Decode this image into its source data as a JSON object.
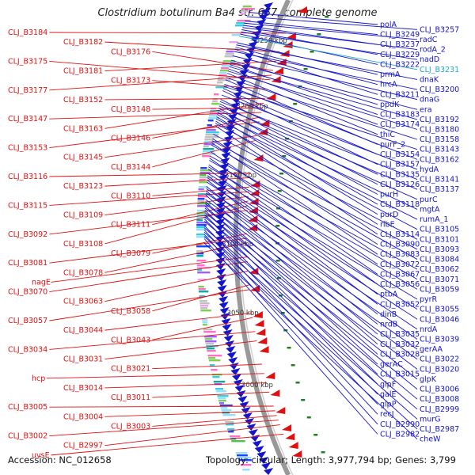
{
  "header": {
    "title": "Clostridium botulinum Ba4 str. 657, complete genome"
  },
  "footer": {
    "accession": "Accession: NC_012658",
    "topology": "Topology: circular; Length: 3,977,794 bp; Genes: 3,799"
  },
  "colors": {
    "forward": "#e01010",
    "reverse": "#1414c8",
    "highlight": "#20a8c8",
    "backbone": "#999999"
  },
  "ruler": [
    "3250 kbp",
    "3200 kbp",
    "3150 kbp",
    "3100 kbp",
    "3050 kbp",
    "3000 kbp"
  ],
  "forward_labels": [
    {
      "text": "CLJ_B3184",
      "gene": 0.04
    },
    {
      "text": "CLJ_B3182",
      "gene": 0.08
    },
    {
      "text": "CLJ_B3176",
      "gene": 0.12
    },
    {
      "text": "CLJ_B3175",
      "gene": 0.14
    },
    {
      "text": "CLJ_B3181",
      "gene": 0.1
    },
    {
      "text": "CLJ_B3173",
      "gene": 0.16
    },
    {
      "text": "CLJ_B3177",
      "gene": 0.13
    },
    {
      "text": "CLJ_B3152",
      "gene": 0.18
    },
    {
      "text": "CLJ_B3148",
      "gene": 0.2
    },
    {
      "text": "CLJ_B3147",
      "gene": 0.21
    },
    {
      "text": "CLJ_B3163",
      "gene": 0.19
    },
    {
      "text": "CLJ_B3146",
      "gene": 0.22
    },
    {
      "text": "CLJ_B3153",
      "gene": 0.23
    },
    {
      "text": "CLJ_B3145",
      "gene": 0.26
    },
    {
      "text": "CLJ_B3144",
      "gene": 0.27
    },
    {
      "text": "CLJ_B3116",
      "gene": 0.34
    },
    {
      "text": "CLJ_B3123",
      "gene": 0.35
    },
    {
      "text": "CLJ_B3110",
      "gene": 0.37
    },
    {
      "text": "CLJ_B3115",
      "gene": 0.38
    },
    {
      "text": "CLJ_B3109",
      "gene": 0.39
    },
    {
      "text": "CLJ_B3111",
      "gene": 0.4
    },
    {
      "text": "CLJ_B3092",
      "gene": 0.42
    },
    {
      "text": "CLJ_B3108",
      "gene": 0.41
    },
    {
      "text": "CLJ_B3079",
      "gene": 0.47
    },
    {
      "text": "CLJ_B3081",
      "gene": 0.48
    },
    {
      "text": "CLJ_B3078",
      "gene": 0.49
    },
    {
      "text": "nagE",
      "gene": 0.52
    },
    {
      "text": "CLJ_B3070",
      "gene": 0.53
    },
    {
      "text": "CLJ_B3063",
      "gene": 0.55
    },
    {
      "text": "CLJ_B3058",
      "gene": 0.58
    },
    {
      "text": "CLJ_B3057",
      "gene": 0.59
    },
    {
      "text": "CLJ_B3044",
      "gene": 0.64
    },
    {
      "text": "CLJ_B3043",
      "gene": 0.65
    },
    {
      "text": "CLJ_B3034",
      "gene": 0.68
    },
    {
      "text": "CLJ_B3031",
      "gene": 0.7
    },
    {
      "text": "CLJ_B3021",
      "gene": 0.75
    },
    {
      "text": "hcp",
      "gene": 0.77
    },
    {
      "text": "CLJ_B3014",
      "gene": 0.79
    },
    {
      "text": "CLJ_B3011",
      "gene": 0.81
    },
    {
      "text": "CLJ_B3005",
      "gene": 0.84
    },
    {
      "text": "CLJ_B3004",
      "gene": 0.85
    },
    {
      "text": "CLJ_B3003",
      "gene": 0.86
    },
    {
      "text": "CLJ_B3002",
      "gene": 0.87
    },
    {
      "text": "CLJ_B2997",
      "gene": 0.88
    },
    {
      "text": "uvsE",
      "gene": 0.9
    }
  ],
  "reverse_labels": [
    {
      "text": "polA",
      "gene": 0.01
    },
    {
      "text": "CLJ_B3257",
      "gene": 0.02
    },
    {
      "text": "CLJ_B3249",
      "gene": 0.03
    },
    {
      "text": "radC",
      "gene": 0.035
    },
    {
      "text": "CLJ_B3237",
      "gene": 0.04
    },
    {
      "text": "rodA_2",
      "gene": 0.045
    },
    {
      "text": "CLJ_B3229",
      "gene": 0.05
    },
    {
      "text": "nadD",
      "gene": 0.055
    },
    {
      "text": "CLJ_B3222",
      "gene": 0.06
    },
    {
      "text": "CLJ_B3231",
      "gene": 0.065,
      "highlight": true
    },
    {
      "text": "prmA",
      "gene": 0.08
    },
    {
      "text": "dnaK",
      "gene": 0.085
    },
    {
      "text": "hrcA",
      "gene": 0.09
    },
    {
      "text": "CLJ_B3200",
      "gene": 0.1
    },
    {
      "text": "CLJ_B3211",
      "gene": 0.095
    },
    {
      "text": "dnaG",
      "gene": 0.11
    },
    {
      "text": "ppdK",
      "gene": 0.12
    },
    {
      "text": "era",
      "gene": 0.125
    },
    {
      "text": "CLJ_B3183",
      "gene": 0.13
    },
    {
      "text": "CLJ_B3192",
      "gene": 0.135
    },
    {
      "text": "CLJ_B3174",
      "gene": 0.14
    },
    {
      "text": "CLJ_B3180",
      "gene": 0.145
    },
    {
      "text": "thiC",
      "gene": 0.15
    },
    {
      "text": "CLJ_B3158",
      "gene": 0.16
    },
    {
      "text": "purF_2",
      "gene": 0.165
    },
    {
      "text": "CLJ_B3143",
      "gene": 0.18
    },
    {
      "text": "CLJ_B3154",
      "gene": 0.185
    },
    {
      "text": "CLJ_B3162",
      "gene": 0.175
    },
    {
      "text": "CLJ_B3157",
      "gene": 0.19
    },
    {
      "text": "hydA",
      "gene": 0.2
    },
    {
      "text": "CLJ_B3135",
      "gene": 0.21
    },
    {
      "text": "CLJ_B3141",
      "gene": 0.215
    },
    {
      "text": "CLJ_B3126",
      "gene": 0.22
    },
    {
      "text": "CLJ_B3137",
      "gene": 0.225
    },
    {
      "text": "purH",
      "gene": 0.23
    },
    {
      "text": "purC",
      "gene": 0.235
    },
    {
      "text": "CLJ_B3118",
      "gene": 0.24
    },
    {
      "text": "mgtA",
      "gene": 0.245
    },
    {
      "text": "purD",
      "gene": 0.25
    },
    {
      "text": "rumA_1",
      "gene": 0.255
    },
    {
      "text": "ribE",
      "gene": 0.26
    },
    {
      "text": "CLJ_B3105",
      "gene": 0.265
    },
    {
      "text": "CLJ_B3114",
      "gene": 0.27
    },
    {
      "text": "CLJ_B3101",
      "gene": 0.29
    },
    {
      "text": "CLJ_B3090",
      "gene": 0.3
    },
    {
      "text": "CLJ_B3093",
      "gene": 0.305
    },
    {
      "text": "CLJ_B3083",
      "gene": 0.31
    },
    {
      "text": "CLJ_B3084",
      "gene": 0.315
    },
    {
      "text": "CLJ_B3072",
      "gene": 0.33
    },
    {
      "text": "CLJ_B3062",
      "gene": 0.34
    },
    {
      "text": "CLJ_B3067",
      "gene": 0.345
    },
    {
      "text": "CLJ_B3071",
      "gene": 0.35
    },
    {
      "text": "CLJ_B3056",
      "gene": 0.36
    },
    {
      "text": "CLJ_B3059",
      "gene": 0.365
    },
    {
      "text": "ptbA",
      "gene": 0.37
    },
    {
      "text": "pyrR",
      "gene": 0.38
    },
    {
      "text": "CLJ_B3052",
      "gene": 0.385
    },
    {
      "text": "CLJ_B3055",
      "gene": 0.39
    },
    {
      "text": "dinB",
      "gene": 0.395
    },
    {
      "text": "CLJ_B3046",
      "gene": 0.4
    },
    {
      "text": "nrdB",
      "gene": 0.41
    },
    {
      "text": "nrdA",
      "gene": 0.415
    },
    {
      "text": "CLJ_B3035",
      "gene": 0.42
    },
    {
      "text": "CLJ_B3039",
      "gene": 0.425
    },
    {
      "text": "CLJ_B3032",
      "gene": 0.43
    },
    {
      "text": "gerAA",
      "gene": 0.44
    },
    {
      "text": "CLJ_B3028",
      "gene": 0.445
    },
    {
      "text": "CLJ_B3022",
      "gene": 0.45
    },
    {
      "text": "gerAC",
      "gene": 0.455
    },
    {
      "text": "CLJ_B3020",
      "gene": 0.46
    },
    {
      "text": "CLJ_B3015",
      "gene": 0.465
    },
    {
      "text": "glpK",
      "gene": 0.47
    },
    {
      "text": "glpF",
      "gene": 0.475
    },
    {
      "text": "CLJ_B3006",
      "gene": 0.48
    },
    {
      "text": "galE",
      "gene": 0.485
    },
    {
      "text": "CLJ_B3008",
      "gene": 0.49
    },
    {
      "text": "glpP",
      "gene": 0.5
    },
    {
      "text": "CLJ_B2999",
      "gene": 0.505
    },
    {
      "text": "recJ",
      "gene": 0.51
    },
    {
      "text": "murG",
      "gene": 0.515
    },
    {
      "text": "CLJ_B2990",
      "gene": 0.52
    },
    {
      "text": "CLJ_B2987",
      "gene": 0.525
    },
    {
      "text": "CLJ_B2982",
      "gene": 0.53
    },
    {
      "text": "cheW",
      "gene": 0.54
    }
  ]
}
